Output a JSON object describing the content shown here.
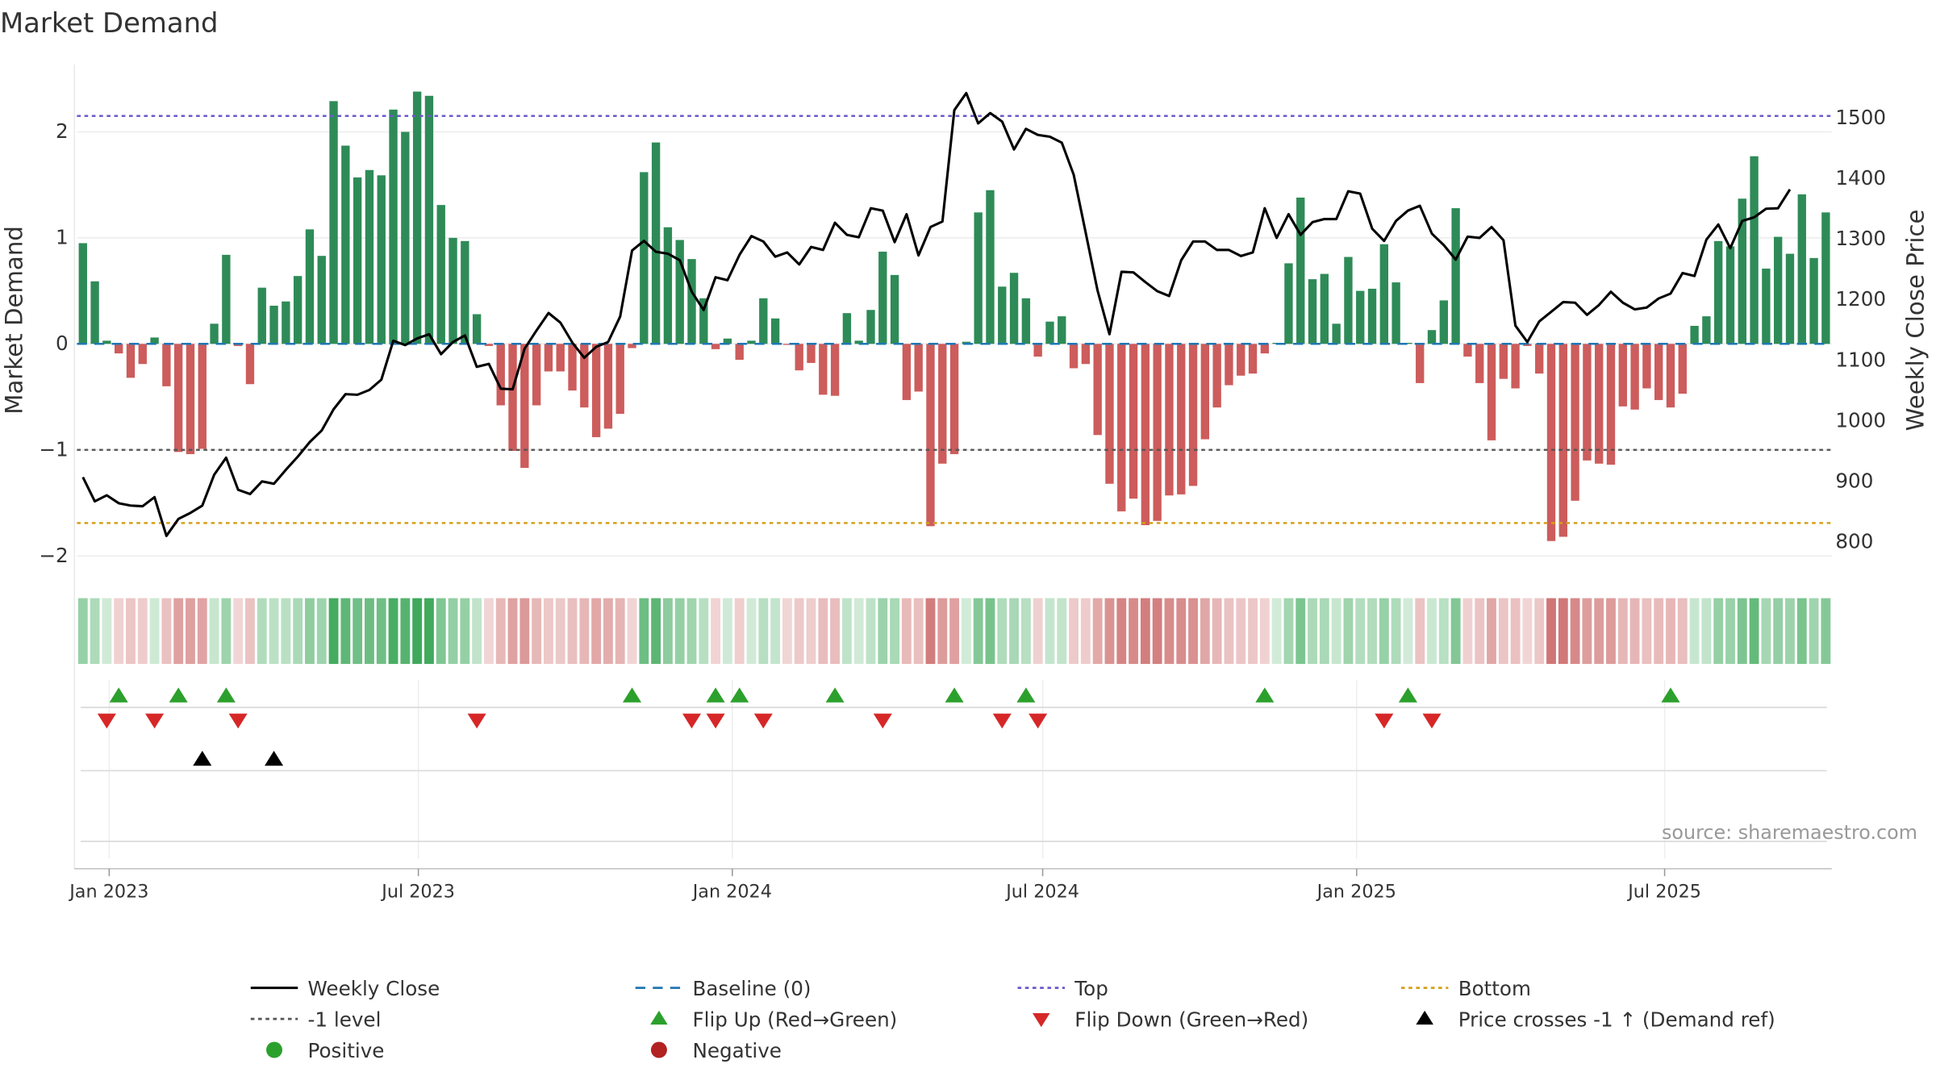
{
  "chart_data": {
    "type": "bar",
    "title": "Market Demand",
    "ylabel_left": "Market Demand",
    "ylabel_right": "Weekly Close Price",
    "source": "source: sharemaestro.com",
    "ylim_left": [
      -2.2,
      2.6
    ],
    "ylim_right": [
      740,
      1580
    ],
    "yticks_left": [
      {
        "v": 2,
        "label": "2"
      },
      {
        "v": 1,
        "label": "1"
      },
      {
        "v": 0,
        "label": "0"
      },
      {
        "v": -1,
        "label": "−1"
      },
      {
        "v": -2,
        "label": "−2"
      }
    ],
    "yticks_right": [
      {
        "v": 1500,
        "label": "1500"
      },
      {
        "v": 1400,
        "label": "1400"
      },
      {
        "v": 1300,
        "label": "1300"
      },
      {
        "v": 1200,
        "label": "1200"
      },
      {
        "v": 1100,
        "label": "1100"
      },
      {
        "v": 1000,
        "label": "1000"
      },
      {
        "v": 900,
        "label": "900"
      },
      {
        "v": 800,
        "label": "800"
      }
    ],
    "x_start": "2022-12-16",
    "x_ticks": [
      {
        "week": 2.2,
        "label": "Jan 2023"
      },
      {
        "week": 28.1,
        "label": "Jul 2023"
      },
      {
        "week": 54.4,
        "label": "Jan 2024"
      },
      {
        "week": 80.4,
        "label": "Jul 2024"
      },
      {
        "week": 106.7,
        "label": "Jan 2025"
      },
      {
        "week": 132.5,
        "label": "Jul 2025"
      }
    ],
    "reference_lines": {
      "baseline": 0,
      "top": 2.15,
      "minus_one": -1,
      "bottom": -1.69
    },
    "demand": [
      0.95,
      0.59,
      0.03,
      -0.09,
      -0.32,
      -0.19,
      0.06,
      -0.4,
      -1.02,
      -1.04,
      -0.99,
      0.19,
      0.84,
      -0.02,
      -0.38,
      0.53,
      0.36,
      0.4,
      0.64,
      1.08,
      0.83,
      2.29,
      1.87,
      1.57,
      1.64,
      1.59,
      2.21,
      2.0,
      2.38,
      2.34,
      1.31,
      1.0,
      0.97,
      0.28,
      -0.02,
      -0.58,
      -1.01,
      -1.17,
      -0.58,
      -0.26,
      -0.26,
      -0.44,
      -0.6,
      -0.88,
      -0.8,
      -0.66,
      -0.04,
      1.62,
      1.9,
      1.1,
      0.98,
      0.8,
      0.43,
      -0.05,
      0.05,
      -0.15,
      0.03,
      0.43,
      0.24,
      -0.01,
      -0.25,
      -0.18,
      -0.48,
      -0.49,
      0.29,
      0.03,
      0.32,
      0.87,
      0.65,
      -0.53,
      -0.45,
      -1.72,
      -1.13,
      -1.04,
      0.02,
      1.24,
      1.45,
      0.54,
      0.67,
      0.43,
      -0.12,
      0.21,
      0.26,
      -0.23,
      -0.19,
      -0.86,
      -1.32,
      -1.58,
      -1.46,
      -1.71,
      -1.67,
      -1.43,
      -1.42,
      -1.34,
      -0.9,
      -0.6,
      -0.39,
      -0.3,
      -0.28,
      -0.09,
      0.01,
      0.76,
      1.38,
      0.61,
      0.66,
      0.19,
      0.82,
      0.5,
      0.52,
      0.94,
      0.58,
      0.01,
      -0.37,
      0.13,
      0.41,
      1.28,
      -0.12,
      -0.37,
      -0.91,
      -0.33,
      -0.42,
      -0.02,
      -0.28,
      -1.86,
      -1.82,
      -1.48,
      -1.1,
      -1.13,
      -1.14,
      -0.59,
      -0.62,
      -0.42,
      -0.53,
      -0.6,
      -0.47,
      0.17,
      0.26,
      0.97,
      0.92,
      1.37,
      1.77,
      0.71,
      1.01,
      0.85,
      1.41,
      0.81,
      1.24
    ],
    "weekly_close": [
      905,
      865,
      875,
      862,
      858,
      857,
      872,
      808,
      836,
      846,
      858,
      909,
      937,
      884,
      877,
      898,
      894,
      917,
      939,
      963,
      982,
      1017,
      1042,
      1041,
      1049,
      1066,
      1130,
      1123,
      1134,
      1141,
      1108,
      1128,
      1139,
      1087,
      1092,
      1051,
      1050,
      1117,
      1147,
      1176,
      1160,
      1127,
      1102,
      1120,
      1128,
      1170,
      1279,
      1295,
      1277,
      1274,
      1263,
      1211,
      1181,
      1235,
      1230,
      1272,
      1303,
      1294,
      1269,
      1276,
      1256,
      1285,
      1280,
      1325,
      1305,
      1301,
      1349,
      1345,
      1293,
      1339,
      1271,
      1318,
      1327,
      1511,
      1539,
      1489,
      1506,
      1492,
      1446,
      1480,
      1470,
      1467,
      1457,
      1404,
      1309,
      1213,
      1141,
      1244,
      1243,
      1227,
      1212,
      1204,
      1263,
      1294,
      1294,
      1280,
      1280,
      1270,
      1276,
      1349,
      1300,
      1339,
      1305,
      1326,
      1331,
      1331,
      1377,
      1373,
      1315,
      1295,
      1328,
      1345,
      1353,
      1307,
      1288,
      1264,
      1302,
      1300,
      1318,
      1296,
      1155,
      1128,
      1162,
      1178,
      1194,
      1193,
      1173,
      1189,
      1211,
      1193,
      1182,
      1185,
      1200,
      1208,
      1242,
      1237,
      1297,
      1322,
      1283,
      1328,
      1334,
      1348,
      1349,
      1380
    ],
    "flip_up": [
      3,
      8,
      12,
      46,
      53,
      55,
      63,
      73,
      79,
      99,
      111,
      133
    ],
    "flip_down": [
      2,
      6,
      13,
      33,
      51,
      53,
      57,
      67,
      77,
      80,
      109,
      113
    ],
    "price_cross": [
      10,
      16
    ],
    "legend": [
      {
        "key": "weekly-close",
        "label": "Weekly Close",
        "color": "#000000"
      },
      {
        "key": "baseline",
        "label": "Baseline (0)",
        "color": "#1f77b4"
      },
      {
        "key": "top",
        "label": "Top",
        "color": "#6a5acd"
      },
      {
        "key": "bottom",
        "label": "Bottom",
        "color": "#d4a017"
      },
      {
        "key": "minus-one",
        "label": "-1 level",
        "color": "#555555"
      },
      {
        "key": "flip-up",
        "label": "Flip Up (Red→Green)",
        "color": "#2ca02c"
      },
      {
        "key": "flip-down",
        "label": "Flip Down (Green→Red)",
        "color": "#d62728"
      },
      {
        "key": "price-cross",
        "label": "Price crosses -1 ↑ (Demand ref)",
        "color": "#000000"
      },
      {
        "key": "positive",
        "label": "Positive",
        "color": "#2ca02c"
      },
      {
        "key": "negative",
        "label": "Negative",
        "color": "#b22222"
      }
    ]
  }
}
